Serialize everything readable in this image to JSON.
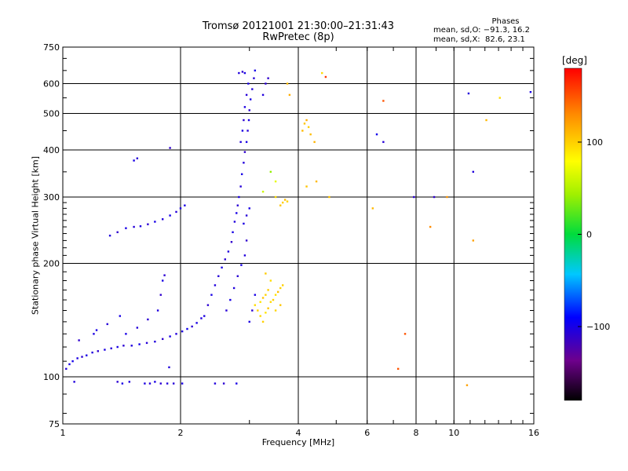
{
  "figure": {
    "title_line1": "Tromsø 20121001 21:30:00–21:31:43",
    "title_line2": "RwPretec (8p)",
    "stats_header": "Phases",
    "stats_line1": "mean, sd,O: −91.3, 16.2",
    "stats_line2": "mean, sd,X:  82.6, 23.1",
    "colorbar_title": "[deg]"
  },
  "chart_data": {
    "type": "scatter",
    "xlabel": "Frequency [MHz]",
    "ylabel": "Stationary phase Virtual Height [km]",
    "xscale": "log",
    "yscale": "log",
    "xlim": [
      1,
      16
    ],
    "ylim": [
      75,
      750
    ],
    "xticks": [
      {
        "value": 1,
        "label": "1",
        "grid": false
      },
      {
        "value": 2,
        "label": "2",
        "grid": true
      },
      {
        "value": 4,
        "label": "4",
        "grid": true
      },
      {
        "value": 6,
        "label": "6",
        "grid": true
      },
      {
        "value": 8,
        "label": "8",
        "grid": true
      },
      {
        "value": 10,
        "label": "10",
        "grid": true
      },
      {
        "value": 16,
        "label": "16",
        "grid": false
      }
    ],
    "yticks": [
      {
        "value": 75,
        "label": "75",
        "grid": false
      },
      {
        "value": 100,
        "label": "100",
        "grid": true
      },
      {
        "value": 200,
        "label": "200",
        "grid": true
      },
      {
        "value": 300,
        "label": "300",
        "grid": true
      },
      {
        "value": 400,
        "label": "400",
        "grid": true
      },
      {
        "value": 500,
        "label": "500",
        "grid": true
      },
      {
        "value": 600,
        "label": "600",
        "grid": true
      },
      {
        "value": 750,
        "label": "750",
        "grid": false
      }
    ],
    "colorbar": {
      "label": "[deg]",
      "range": [
        -180,
        180
      ],
      "ticks": [
        -100,
        0,
        100
      ]
    },
    "series": [
      {
        "name": "O",
        "points": [
          [
            1.02,
            105,
            -105
          ],
          [
            1.04,
            108,
            -100
          ],
          [
            1.06,
            110,
            -98
          ],
          [
            1.09,
            112,
            -102
          ],
          [
            1.12,
            113,
            -108
          ],
          [
            1.15,
            114,
            -100
          ],
          [
            1.19,
            116,
            -104
          ],
          [
            1.23,
            117,
            -110
          ],
          [
            1.28,
            118,
            -102
          ],
          [
            1.33,
            119,
            -106
          ],
          [
            1.38,
            120,
            -100
          ],
          [
            1.43,
            121,
            -108
          ],
          [
            1.5,
            121,
            -103
          ],
          [
            1.57,
            122,
            -98
          ],
          [
            1.64,
            123,
            -106
          ],
          [
            1.72,
            124,
            -104
          ],
          [
            1.8,
            126,
            -110
          ],
          [
            1.88,
            128,
            -100
          ],
          [
            1.95,
            130,
            -105
          ],
          [
            2.02,
            132,
            -103
          ],
          [
            2.08,
            134,
            -97
          ],
          [
            2.14,
            136,
            -108
          ],
          [
            2.2,
            139,
            -100
          ],
          [
            2.26,
            143,
            -104
          ],
          [
            1.45,
            130,
            -100
          ],
          [
            1.55,
            135,
            -105
          ],
          [
            1.65,
            142,
            -108
          ],
          [
            1.75,
            150,
            -103
          ],
          [
            1.78,
            165,
            -110
          ],
          [
            1.8,
            180,
            -100
          ],
          [
            1.82,
            186,
            -108
          ],
          [
            1.1,
            125,
            -110
          ],
          [
            1.2,
            130,
            -102
          ],
          [
            1.3,
            138,
            -106
          ],
          [
            1.4,
            145,
            -100
          ],
          [
            1.32,
            237,
            -104
          ],
          [
            1.38,
            242,
            -110
          ],
          [
            1.45,
            248,
            -100
          ],
          [
            1.52,
            250,
            -106
          ],
          [
            1.58,
            251,
            -102
          ],
          [
            1.65,
            254,
            -108
          ],
          [
            1.72,
            258,
            -100
          ],
          [
            1.8,
            262,
            -104
          ],
          [
            1.88,
            268,
            -98
          ],
          [
            1.95,
            274,
            -106
          ],
          [
            2.0,
            280,
            -102
          ],
          [
            2.05,
            285,
            -100
          ],
          [
            1.52,
            375,
            -100
          ],
          [
            1.55,
            380,
            -106
          ],
          [
            1.88,
            405,
            -110
          ],
          [
            2.3,
            145,
            -102
          ],
          [
            2.35,
            155,
            -108
          ],
          [
            2.4,
            165,
            -100
          ],
          [
            2.45,
            175,
            -104
          ],
          [
            2.5,
            185,
            -106
          ],
          [
            2.55,
            195,
            -100
          ],
          [
            2.6,
            205,
            -108
          ],
          [
            2.65,
            215,
            -104
          ],
          [
            2.7,
            228,
            -110
          ],
          [
            2.72,
            242,
            -100
          ],
          [
            2.75,
            258,
            -104
          ],
          [
            2.78,
            272,
            -100
          ],
          [
            2.8,
            285,
            -108
          ],
          [
            2.82,
            300,
            -102
          ],
          [
            2.85,
            320,
            -106
          ],
          [
            2.87,
            345,
            -100
          ],
          [
            2.9,
            370,
            -104
          ],
          [
            2.92,
            395,
            -110
          ],
          [
            2.95,
            420,
            -100
          ],
          [
            2.97,
            450,
            -106
          ],
          [
            2.99,
            480,
            -102
          ],
          [
            3.0,
            510,
            -108
          ],
          [
            3.02,
            545,
            -100
          ],
          [
            3.05,
            580,
            -104
          ],
          [
            3.08,
            620,
            -106
          ],
          [
            3.1,
            650,
            -100
          ],
          [
            2.62,
            150,
            -106
          ],
          [
            2.68,
            160,
            -100
          ],
          [
            2.74,
            172,
            -104
          ],
          [
            2.8,
            185,
            -108
          ],
          [
            2.86,
            198,
            -100
          ],
          [
            2.92,
            210,
            -104
          ],
          [
            2.95,
            230,
            -110
          ],
          [
            2.9,
            255,
            -102
          ],
          [
            2.95,
            268,
            -106
          ],
          [
            3.0,
            280,
            -100
          ],
          [
            2.85,
            420,
            -104
          ],
          [
            2.88,
            450,
            -100
          ],
          [
            2.9,
            480,
            -108
          ],
          [
            2.92,
            520,
            -102
          ],
          [
            2.95,
            560,
            -106
          ],
          [
            2.98,
            600,
            -100
          ],
          [
            2.82,
            640,
            -104
          ],
          [
            2.88,
            645,
            -110
          ],
          [
            2.92,
            640,
            -100
          ],
          [
            3.0,
            140,
            -102
          ],
          [
            3.05,
            150,
            -108
          ],
          [
            3.1,
            165,
            -100
          ],
          [
            3.25,
            560,
            -104
          ],
          [
            3.3,
            600,
            -108
          ],
          [
            3.35,
            620,
            -110
          ],
          [
            1.07,
            97,
            -104
          ],
          [
            1.38,
            97,
            -108
          ],
          [
            1.42,
            96,
            -100
          ],
          [
            1.48,
            97,
            -104
          ],
          [
            1.62,
            96,
            -102
          ],
          [
            1.67,
            96,
            -106
          ],
          [
            1.72,
            97,
            -100
          ],
          [
            1.78,
            96,
            -108
          ],
          [
            1.85,
            96,
            -104
          ],
          [
            1.92,
            96,
            -106
          ],
          [
            2.02,
            96,
            -100
          ],
          [
            2.45,
            96,
            -104
          ],
          [
            2.58,
            96,
            -108
          ],
          [
            2.78,
            96,
            -100
          ],
          [
            1.22,
            133,
            -100
          ],
          [
            1.87,
            106,
            -104
          ],
          [
            6.6,
            420,
            -106
          ],
          [
            10.9,
            565,
            -104
          ],
          [
            7.9,
            300,
            -108
          ],
          [
            11.2,
            350,
            -104
          ],
          [
            15.7,
            570,
            -100
          ],
          [
            8.9,
            300,
            -110
          ],
          [
            6.35,
            440,
            -98
          ]
        ]
      },
      {
        "name": "X",
        "points": [
          [
            3.1,
            155,
            95
          ],
          [
            3.15,
            150,
            100
          ],
          [
            3.2,
            158,
            92
          ],
          [
            3.25,
            162,
            105
          ],
          [
            3.3,
            165,
            98
          ],
          [
            3.35,
            170,
            102
          ],
          [
            3.2,
            145,
            96
          ],
          [
            3.25,
            140,
            100
          ],
          [
            3.3,
            148,
            90
          ],
          [
            3.35,
            152,
            104
          ],
          [
            3.4,
            158,
            96
          ],
          [
            3.45,
            160,
            100
          ],
          [
            3.5,
            165,
            92
          ],
          [
            3.55,
            168,
            108
          ],
          [
            3.6,
            172,
            98
          ],
          [
            3.65,
            175,
            100
          ],
          [
            3.4,
            180,
            94
          ],
          [
            3.3,
            188,
            102
          ],
          [
            3.5,
            150,
            98
          ],
          [
            3.6,
            155,
            104
          ],
          [
            3.6,
            285,
            105
          ],
          [
            3.65,
            290,
            100
          ],
          [
            3.7,
            295,
            108
          ],
          [
            3.75,
            292,
            98
          ],
          [
            3.5,
            300,
            96
          ],
          [
            4.1,
            450,
            110
          ],
          [
            4.15,
            470,
            105
          ],
          [
            4.2,
            480,
            115
          ],
          [
            4.25,
            460,
            100
          ],
          [
            4.3,
            440,
            108
          ],
          [
            4.4,
            420,
            112
          ],
          [
            3.75,
            600,
            110
          ],
          [
            3.8,
            560,
            115
          ],
          [
            4.6,
            640,
            95
          ],
          [
            4.2,
            320,
            105
          ],
          [
            4.45,
            330,
            110
          ],
          [
            4.8,
            300,
            105
          ],
          [
            3.25,
            310,
            60
          ],
          [
            3.5,
            330,
            70
          ],
          [
            3.4,
            350,
            40
          ],
          [
            6.2,
            280,
            110
          ],
          [
            7.2,
            105,
            150
          ],
          [
            7.5,
            130,
            150
          ],
          [
            9.6,
            300,
            125
          ],
          [
            8.7,
            250,
            130
          ],
          [
            10.8,
            95,
            120
          ],
          [
            12.1,
            480,
            110
          ],
          [
            13.1,
            550,
            95
          ],
          [
            11.2,
            230,
            120
          ],
          [
            6.6,
            540,
            150
          ],
          [
            4.7,
            625,
            160
          ]
        ]
      }
    ]
  }
}
